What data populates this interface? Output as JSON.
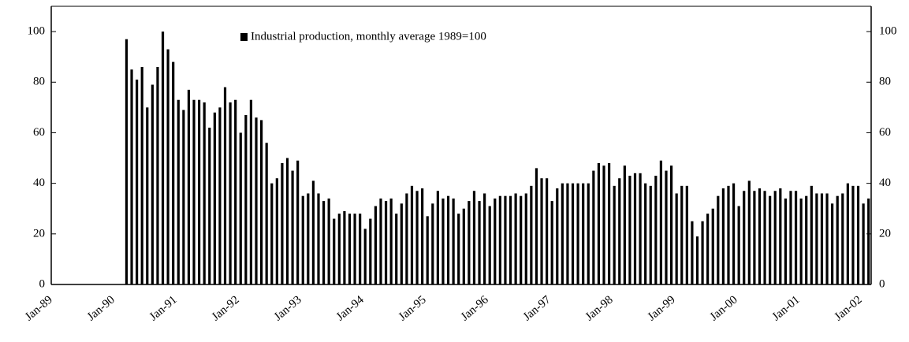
{
  "chart_data": {
    "type": "bar",
    "categories": [
      "Jan-89",
      null,
      null,
      null,
      null,
      null,
      null,
      null,
      null,
      null,
      null,
      null,
      "Jan-90",
      null,
      null,
      null,
      null,
      null,
      null,
      null,
      null,
      null,
      null,
      null,
      "Jan-91",
      null,
      null,
      null,
      null,
      null,
      null,
      null,
      null,
      null,
      null,
      null,
      "Jan-92",
      null,
      null,
      null,
      null,
      null,
      null,
      null,
      null,
      null,
      null,
      null,
      "Jan-93",
      null,
      null,
      null,
      null,
      null,
      null,
      null,
      null,
      null,
      null,
      null,
      "Jan-94",
      null,
      null,
      null,
      null,
      null,
      null,
      null,
      null,
      null,
      null,
      null,
      "Jan-95",
      null,
      null,
      null,
      null,
      null,
      null,
      null,
      null,
      null,
      null,
      null,
      "Jan-96",
      null,
      null,
      null,
      null,
      null,
      null,
      null,
      null,
      null,
      null,
      null,
      "Jan-97",
      null,
      null,
      null,
      null,
      null,
      null,
      null,
      null,
      null,
      null,
      null,
      "Jan-98",
      null,
      null,
      null,
      null,
      null,
      null,
      null,
      null,
      null,
      null,
      null,
      "Jan-99",
      null,
      null,
      null,
      null,
      null,
      null,
      null,
      null,
      null,
      null,
      null,
      "Jan-00",
      null,
      null,
      null,
      null,
      null,
      null,
      null,
      null,
      null,
      null,
      null,
      "Jan-01",
      null,
      null,
      null,
      null,
      null,
      null,
      null,
      null,
      null,
      null,
      null,
      "Jan-02",
      null
    ],
    "series": [
      {
        "name": "Industrial production, monthly average 1989=100",
        "color": "#000000",
        "values": [
          null,
          null,
          null,
          null,
          null,
          null,
          null,
          null,
          null,
          null,
          null,
          null,
          null,
          null,
          97,
          85,
          81,
          86,
          70,
          79,
          86,
          100,
          93,
          88,
          73,
          69,
          77,
          73,
          73,
          72,
          62,
          68,
          70,
          78,
          72,
          73,
          60,
          67,
          73,
          66,
          65,
          56,
          40,
          42,
          48,
          50,
          45,
          49,
          35,
          36,
          41,
          36,
          33,
          34,
          26,
          28,
          29,
          28,
          28,
          28,
          22,
          26,
          31,
          34,
          33,
          34,
          28,
          32,
          36,
          39,
          37,
          38,
          27,
          32,
          37,
          34,
          35,
          34,
          28,
          30,
          33,
          37,
          33,
          36,
          31,
          34,
          35,
          35,
          35,
          36,
          35,
          36,
          39,
          46,
          42,
          42,
          33,
          38,
          40,
          40,
          40,
          40,
          40,
          40,
          45,
          48,
          47,
          48,
          39,
          42,
          47,
          43,
          44,
          44,
          40,
          39,
          43,
          49,
          45,
          47,
          36,
          39,
          39,
          25,
          19,
          25,
          28,
          30,
          35,
          38,
          39,
          40,
          31,
          37,
          41,
          37,
          38,
          37,
          35,
          37,
          38,
          34,
          37,
          37,
          34,
          35,
          39,
          36,
          36,
          36,
          32,
          35,
          36,
          40,
          39,
          39,
          32,
          34
        ]
      }
    ],
    "ylim": [
      0,
      110
    ],
    "yticks": [
      0,
      20,
      40,
      60,
      80,
      100
    ]
  }
}
